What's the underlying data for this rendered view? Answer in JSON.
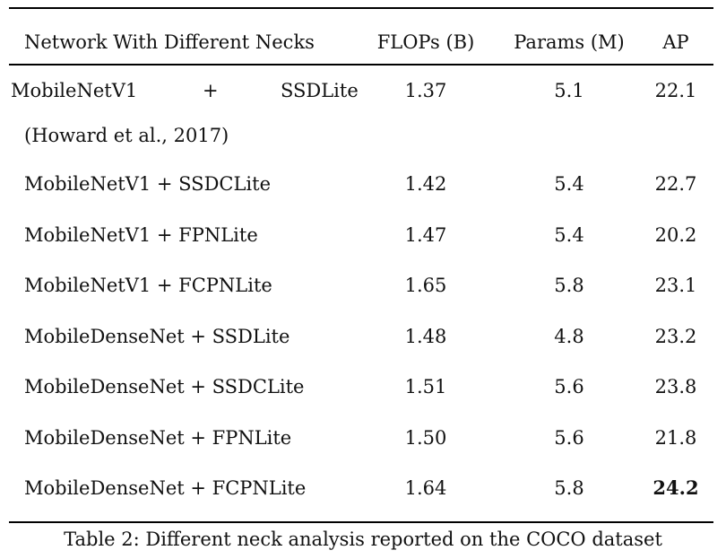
{
  "table": {
    "headers": [
      "Network With Different Necks",
      "FLOPs (B)",
      "Params (M)",
      "AP"
    ],
    "rows": [
      {
        "network": "MobileNetV1 + SSDLite (Howard et al., 2017)",
        "network_parts": [
          "MobileNetV1",
          "+",
          "SSDLite",
          "(Howard et al., 2017)"
        ],
        "flops": "1.37",
        "params": "5.1",
        "ap": "22.1"
      },
      {
        "network": "MobileNetV1 + SSDCLite",
        "flops": "1.42",
        "params": "5.4",
        "ap": "22.7"
      },
      {
        "network": "MobileNetV1 + FPNLite",
        "flops": "1.47",
        "params": "5.4",
        "ap": "20.2"
      },
      {
        "network": "MobileNetV1 + FCPNLite",
        "flops": "1.65",
        "params": "5.8",
        "ap": "23.1"
      },
      {
        "network": "MobileDenseNet + SSDLite",
        "flops": "1.48",
        "params": "4.8",
        "ap": "23.2"
      },
      {
        "network": "MobileDenseNet + SSDCLite",
        "flops": "1.51",
        "params": "5.6",
        "ap": "23.8"
      },
      {
        "network": "MobileDenseNet + FPNLite",
        "flops": "1.50",
        "params": "5.6",
        "ap": "21.8"
      },
      {
        "network": "MobileDenseNet + FCPNLite",
        "flops": "1.64",
        "params": "5.8",
        "ap": "24.2",
        "ap_bold": true
      }
    ]
  },
  "caption": "Table 2: Different neck analysis reported on the COCO dataset"
}
